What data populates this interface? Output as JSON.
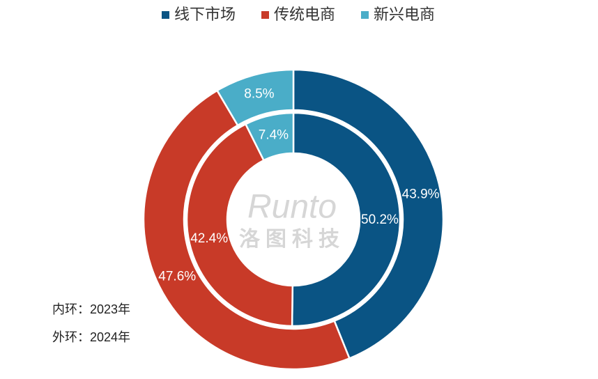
{
  "chart_data": {
    "type": "donut",
    "categories": [
      "线下市场",
      "传统电商",
      "新兴电商"
    ],
    "colors": [
      "#0a5484",
      "#c83a28",
      "#4aadc8"
    ],
    "series": [
      {
        "label": "内环：2023年",
        "ring": "inner",
        "values": [
          50.2,
          42.4,
          7.4
        ],
        "value_labels": [
          "50.2%",
          "42.4%",
          "7.4%"
        ]
      },
      {
        "label": "外环：2024年",
        "ring": "outer",
        "values": [
          43.9,
          47.6,
          8.5
        ],
        "value_labels": [
          "43.9%",
          "47.6%",
          "8.5%"
        ]
      }
    ],
    "watermark": [
      "Runto",
      "洛图科技"
    ],
    "legend": "top"
  }
}
